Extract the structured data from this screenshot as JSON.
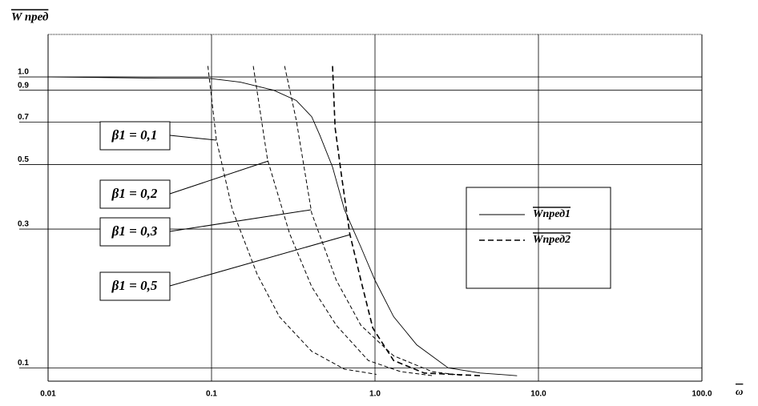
{
  "chart_data": {
    "type": "line",
    "y_label": "W пред",
    "x_label": "ω",
    "xlim": [
      0.01,
      100
    ],
    "ylim": [
      0.09,
      1.4
    ],
    "log_x": true,
    "log_y": true,
    "grid": true,
    "xticks": [
      0.01,
      0.1,
      {
        "value": 1,
        "label": "1.0"
      },
      {
        "value": 10,
        "label": "10.0"
      },
      {
        "value": 100,
        "label": "100.0"
      }
    ],
    "yticks": [
      0.1,
      0.3,
      0.5,
      0.7,
      0.9,
      {
        "value": 1,
        "label": "1.0"
      }
    ],
    "series": [
      {
        "name": "Wпред1",
        "color": "#000000",
        "dash": false,
        "x": [
          0.01,
          0.049,
          0.095,
          0.15,
          0.24,
          0.33,
          0.41,
          0.46,
          0.55,
          0.65,
          0.82,
          1.0,
          1.3,
          1.8,
          2.8,
          4.4,
          7.4
        ],
        "values": [
          1.0,
          0.99,
          0.99,
          0.96,
          0.9,
          0.83,
          0.73,
          0.63,
          0.49,
          0.35,
          0.26,
          0.2,
          0.15,
          0.12,
          0.1,
          0.096,
          0.094
        ]
      },
      {
        "name": "Wпред2",
        "annotation": "β1 = 0,5",
        "color": "#000000",
        "dash": true,
        "x": [
          0.55,
          0.57,
          0.62,
          0.7,
          0.82,
          0.97,
          1.3,
          2.0,
          4.4
        ],
        "values": [
          1.09,
          0.67,
          0.47,
          0.29,
          0.2,
          0.137,
          0.106,
          0.096,
          0.094
        ]
      },
      {
        "annotation": "β1 = 0,1",
        "color": "#000000",
        "dash": true,
        "x": [
          0.095,
          0.107,
          0.134,
          0.19,
          0.26,
          0.41,
          0.65,
          1.02
        ],
        "values": [
          1.09,
          0.61,
          0.35,
          0.21,
          0.15,
          0.114,
          0.099,
          0.095
        ]
      },
      {
        "annotation": "β1 = 0,2",
        "color": "#000000",
        "dash": true,
        "x": [
          0.18,
          0.22,
          0.3,
          0.41,
          0.58,
          0.91,
          1.44,
          2.25
        ],
        "values": [
          1.09,
          0.52,
          0.29,
          0.19,
          0.14,
          0.106,
          0.097,
          0.094
        ]
      },
      {
        "annotation": "β1 = 0,3",
        "color": "#000000",
        "dash": true,
        "x": [
          0.28,
          0.33,
          0.41,
          0.58,
          0.82,
          1.3,
          2.25,
          3.5
        ],
        "values": [
          1.09,
          0.71,
          0.34,
          0.2,
          0.14,
          0.11,
          0.097,
          0.094
        ]
      }
    ]
  }
}
